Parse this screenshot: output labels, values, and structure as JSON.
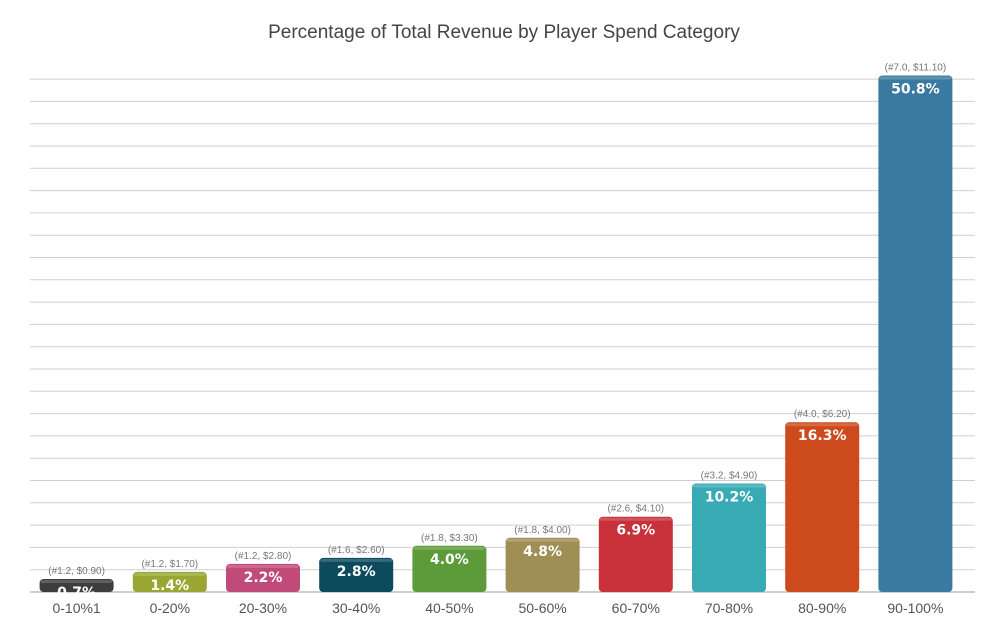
{
  "chart_data": {
    "type": "bar",
    "title": "Percentage of Total Revenue by Player Spend Category",
    "xlabel": "",
    "ylabel": "",
    "ylim": [
      0,
      54
    ],
    "grid": true,
    "categories": [
      "0-10%1",
      "0-20%",
      "20-30%",
      "30-40%",
      "40-50%",
      "50-60%",
      "60-70%",
      "70-80%",
      "80-90%",
      "90-100%"
    ],
    "values": [
      0.7,
      1.4,
      2.2,
      2.8,
      4.0,
      4.8,
      6.9,
      10.2,
      16.3,
      50.8
    ],
    "value_labels": [
      "0.7%",
      "1.4%",
      "2.2%",
      "2.8%",
      "4.0%",
      "4.8%",
      "6.9%",
      "10.2%",
      "16.3%",
      "50.8%"
    ],
    "annotations": [
      "(#1.2, $0.90)",
      "(#1.2, $1.70)",
      "(#1.2, $2.80)",
      "(#1.6, $2.60)",
      "(#1.8, $3.30)",
      "(#1.8, $4.00)",
      "(#2.6, $4.10)",
      "(#3.2, $4.90)",
      "(#4.0, $6.20)",
      "(#7.0, $11.10)"
    ],
    "colors": [
      "#3d3d3d",
      "#9aa633",
      "#c04a78",
      "#0c4a5e",
      "#5c9a3a",
      "#a08f55",
      "#c8303a",
      "#38aab4",
      "#cc4a1c",
      "#3b7aa0"
    ]
  }
}
